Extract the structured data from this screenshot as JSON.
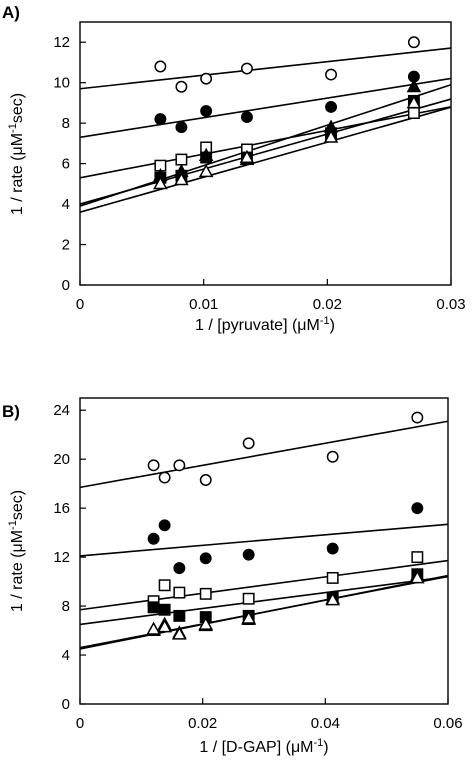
{
  "chart_data": [
    {
      "type": "scatter",
      "panel_label": "A)",
      "xlabel": {
        "pre": "1 / [pyruvate] (μM",
        "sup": "-1",
        "post": ")"
      },
      "ylabel": {
        "pre": "1 / rate (μM",
        "sup": "-1",
        "post": "sec)"
      },
      "xlim": [
        0,
        0.03
      ],
      "ylim": [
        0,
        13
      ],
      "xticks": [
        0,
        0.01,
        0.02,
        0.03
      ],
      "xtick_labels": [
        "0",
        "0.01",
        "0.02",
        "0.03"
      ],
      "yticks": [
        0,
        2,
        4,
        6,
        8,
        10,
        12
      ],
      "ytick_labels": [
        "0",
        "2",
        "4",
        "6",
        "8",
        "10",
        "12"
      ],
      "grid": false,
      "legend": "none",
      "series": [
        {
          "marker": "open-circle",
          "x": [
            0.0065,
            0.0082,
            0.0102,
            0.0135,
            0.0203,
            0.027
          ],
          "y": [
            10.8,
            9.8,
            10.2,
            10.7,
            10.4,
            12.0
          ],
          "fit": {
            "intercept": 9.7,
            "slope": 67
          }
        },
        {
          "marker": "filled-circle",
          "x": [
            0.0065,
            0.0082,
            0.0102,
            0.0135,
            0.0203,
            0.027
          ],
          "y": [
            8.2,
            7.8,
            8.6,
            8.3,
            8.8,
            10.3
          ],
          "fit": {
            "intercept": 7.3,
            "slope": 97
          }
        },
        {
          "marker": "open-square",
          "x": [
            0.0065,
            0.0082,
            0.0102,
            0.0135,
            0.0203,
            0.027
          ],
          "y": [
            5.9,
            6.2,
            6.8,
            6.7,
            7.4,
            8.5
          ],
          "fit": {
            "intercept": 5.3,
            "slope": 117
          }
        },
        {
          "marker": "filled-square",
          "x": [
            0.0065,
            0.0082,
            0.0102,
            0.0135,
            0.0203,
            0.027
          ],
          "y": [
            5.3,
            5.4,
            6.3,
            6.3,
            7.5,
            9.1
          ],
          "fit": {
            "intercept": 4.0,
            "slope": 173
          }
        },
        {
          "marker": "filled-triangle",
          "x": [
            0.0065,
            0.0082,
            0.0102,
            0.0135,
            0.0203,
            0.027
          ],
          "y": [
            5.4,
            5.6,
            6.4,
            6.2,
            7.8,
            9.8
          ],
          "fit": {
            "intercept": 3.9,
            "slope": 200
          }
        },
        {
          "marker": "open-triangle",
          "x": [
            0.0065,
            0.0082,
            0.0102,
            0.0135,
            0.0203,
            0.027
          ],
          "y": [
            5.0,
            5.2,
            5.6,
            6.3,
            7.3,
            9.0
          ],
          "fit": {
            "intercept": 3.6,
            "slope": 173
          }
        }
      ]
    },
    {
      "type": "scatter",
      "panel_label": "B)",
      "xlabel": {
        "pre": "1 / [D-GAP] (μM",
        "sup": "-1",
        "post": ")"
      },
      "ylabel": {
        "pre": "1 / rate (μM",
        "sup": "-1",
        "post": "sec)"
      },
      "xlim": [
        0,
        0.06
      ],
      "ylim": [
        0,
        25
      ],
      "xticks": [
        0,
        0.02,
        0.04,
        0.06
      ],
      "xtick_labels": [
        "0",
        "0.02",
        "0.04",
        "0.06"
      ],
      "yticks": [
        0,
        4,
        8,
        12,
        16,
        20,
        24
      ],
      "ytick_labels": [
        "0",
        "4",
        "8",
        "12",
        "16",
        "20",
        "24"
      ],
      "grid": false,
      "legend": "none",
      "series": [
        {
          "marker": "open-circle",
          "x": [
            0.012,
            0.0138,
            0.0162,
            0.0205,
            0.0275,
            0.0412,
            0.055
          ],
          "y": [
            19.5,
            18.5,
            19.5,
            18.3,
            21.3,
            20.2,
            23.4
          ],
          "fit": {
            "intercept": 17.7,
            "slope": 90
          }
        },
        {
          "marker": "filled-circle",
          "x": [
            0.012,
            0.0138,
            0.0162,
            0.0205,
            0.0275,
            0.0412,
            0.055
          ],
          "y": [
            13.5,
            14.6,
            11.1,
            11.9,
            12.2,
            12.7,
            16.0
          ],
          "fit": {
            "intercept": 12.1,
            "slope": 43
          }
        },
        {
          "marker": "open-square",
          "x": [
            0.012,
            0.0138,
            0.0162,
            0.0205,
            0.0275,
            0.0412,
            0.055
          ],
          "y": [
            8.4,
            9.7,
            9.1,
            9.0,
            8.6,
            10.3,
            12.0
          ],
          "fit": {
            "intercept": 7.7,
            "slope": 67
          }
        },
        {
          "marker": "filled-square",
          "x": [
            0.012,
            0.0138,
            0.0162,
            0.0205,
            0.0275,
            0.0412,
            0.055
          ],
          "y": [
            7.9,
            7.7,
            7.2,
            7.1,
            7.2,
            8.7,
            10.6
          ],
          "fit": {
            "intercept": 6.5,
            "slope": 65
          }
        },
        {
          "marker": "filled-triangle",
          "x": [
            0.012,
            0.0138,
            0.0162,
            0.0205,
            0.0275,
            0.0412,
            0.055
          ],
          "y": [
            6.0,
            6.5,
            5.8,
            6.4,
            6.9,
            8.6,
            10.5
          ],
          "fit": {
            "intercept": 4.6,
            "slope": 97
          }
        },
        {
          "marker": "open-triangle",
          "x": [
            0.012,
            0.0138,
            0.0162,
            0.0205,
            0.0275,
            0.0412,
            0.055
          ],
          "y": [
            6.1,
            6.3,
            5.7,
            6.5,
            7.0,
            8.5,
            10.3
          ],
          "fit": {
            "intercept": 4.5,
            "slope": 100
          }
        }
      ]
    }
  ]
}
